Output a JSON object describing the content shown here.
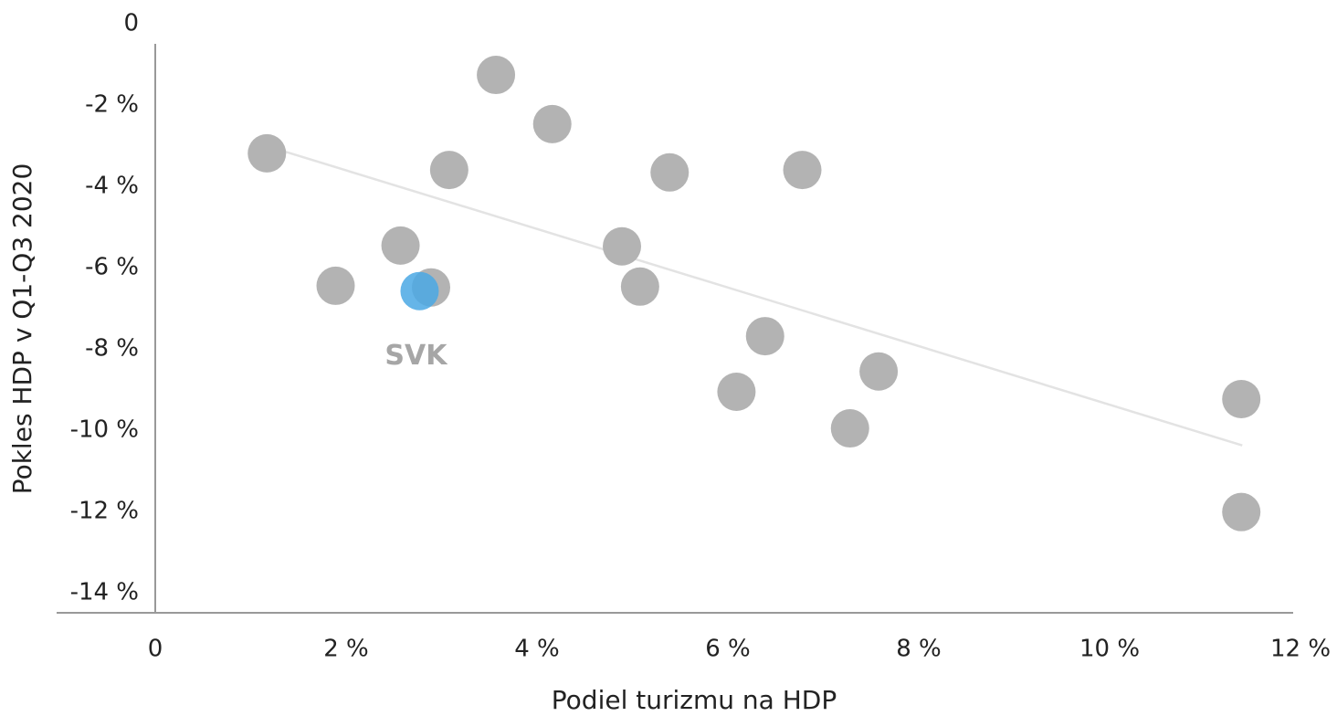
{
  "chart_data": {
    "type": "scatter",
    "xlabel": "Podiel turizmu na HDP",
    "ylabel": "Pokles HDP v Q1-Q3 2020",
    "xlim": [
      0,
      12
    ],
    "ylim": [
      -14.5,
      0
    ],
    "xticks": [
      0,
      {
        "value": 2,
        "label": "2 %"
      },
      {
        "value": 4,
        "label": "4 %"
      },
      {
        "value": 6,
        "label": "6 %"
      },
      {
        "value": 8,
        "label": "8 %"
      },
      {
        "value": 10,
        "label": "10 %"
      },
      {
        "value": 12,
        "label": "12 %"
      }
    ],
    "yticks": [
      0,
      {
        "value": -2,
        "label": "-2 %"
      },
      {
        "value": -4,
        "label": "-4 %"
      },
      {
        "value": -6,
        "label": "-6 %"
      },
      {
        "value": -8,
        "label": "-8 %"
      },
      {
        "value": -10,
        "label": "-10 %"
      },
      {
        "value": -12,
        "label": "-12 %"
      },
      {
        "value": -14,
        "label": "-14 %"
      }
    ],
    "series": [
      {
        "color": "#b3b3b3",
        "x": [
          1.17,
          1.89,
          2.57,
          2.89,
          3.08,
          3.57,
          4.16,
          4.89,
          5.08,
          5.39,
          6.39,
          6.09,
          6.78,
          7.28,
          7.58,
          11.38,
          11.38
        ],
        "y": [
          -3.19,
          -6.45,
          -5.46,
          -6.49,
          -3.6,
          -1.26,
          -2.47,
          -5.48,
          -6.47,
          -3.66,
          -7.69,
          -9.06,
          -3.6,
          -9.96,
          -8.56,
          -9.24,
          -12.02
        ]
      },
      {
        "label": "SVK",
        "color": "#4aa8e4",
        "x": [
          2.77
        ],
        "y": [
          -6.58
        ]
      }
    ],
    "trendline": {
      "color": "#e3e3e3",
      "x": [
        1.17,
        11.39
      ],
      "y": [
        -3.01,
        -10.38
      ]
    }
  }
}
